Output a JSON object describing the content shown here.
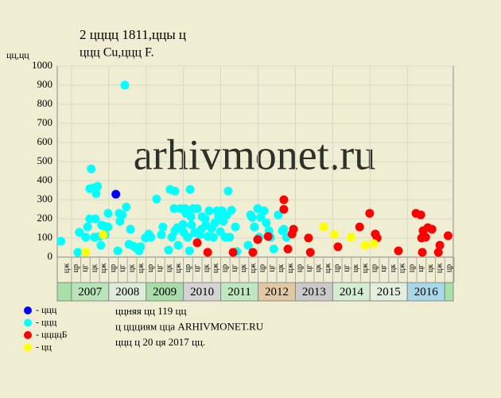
{
  "chart_data": {
    "type": "scatter",
    "title": "2 цццц 1811,ццы ц",
    "subtitle": "ццц Cu,ццц F.",
    "y_label": "цц,цц",
    "watermark": "arhivmonet.ru",
    "notes": [
      "ццняя цц 119 цц",
      "ц ццциям цца ARHIVMONET.RU",
      "ццц ц 20 ця 2017 цц."
    ],
    "xlim": [
      2006.62,
      2017.23
    ],
    "ylim": [
      0,
      1000
    ],
    "yticks": [
      0,
      100,
      200,
      300,
      400,
      500,
      600,
      700,
      800,
      900,
      1000
    ],
    "grid": true,
    "xticks": [
      2007,
      2008,
      2009,
      2010,
      2011,
      2012,
      2013,
      2014,
      2015,
      2016
    ],
    "year_colors": [
      "#b8e4b8",
      "#dcecd8",
      "#a8dca8",
      "#d4d4d4",
      "#c0e8c0",
      "#e2c8a0",
      "#cacaca",
      "#d4ecd0",
      "#e4eedc",
      "#a8d8e8"
    ],
    "edge_color": "#a8e0a8",
    "quarter_start": 2006.75,
    "quarter_labels": [
      "цж",
      "цр",
      "цг",
      "цк",
      "цж",
      "цр",
      "цг",
      "цк",
      "цж",
      "цр",
      "цг",
      "цк",
      "цж",
      "цр",
      "цг",
      "цк",
      "цж",
      "цр",
      "цг",
      "цк",
      "цж",
      "цр",
      "цг",
      "цк",
      "цж",
      "цр",
      "цг",
      "цк",
      "цж",
      "цр",
      "цг",
      "цк",
      "цж",
      "цр",
      "цг",
      "цк",
      "цж",
      "цр",
      "цг",
      "цк",
      "цж",
      "цр"
    ],
    "series": [
      {
        "name": "- ццц",
        "color": "#0000ff",
        "x": [
          2008.19
        ],
        "values": [
          329
        ]
      },
      {
        "name": "- ццц",
        "color": "#00ffff",
        "x": [
          2006.72,
          2007.17,
          2007.21,
          2007.38,
          2007.43,
          2007.49,
          2007.49,
          2007.53,
          2007.58,
          2007.62,
          2007.64,
          2007.66,
          2007.7,
          2007.75,
          2007.79,
          2007.81,
          2007.87,
          2007.9,
          2007.98,
          2007.98,
          2008.24,
          2008.28,
          2008.3,
          2008.36,
          2008.43,
          2008.47,
          2008.54,
          2008.58,
          2008.66,
          2008.75,
          2008.81,
          2008.85,
          2008.98,
          2009.07,
          2009.13,
          2009.28,
          2009.41,
          2009.45,
          2009.6,
          2009.64,
          2009.69,
          2009.75,
          2009.77,
          2009.77,
          2009.84,
          2009.86,
          2009.92,
          2009.99,
          2010.01,
          2010.05,
          2010.07,
          2010.11,
          2010.16,
          2010.18,
          2010.2,
          2010.22,
          2010.26,
          2010.3,
          2010.37,
          2010.43,
          2010.48,
          2010.5,
          2010.58,
          2010.6,
          2010.65,
          2010.69,
          2010.75,
          2010.8,
          2010.84,
          2010.9,
          2010.94,
          2010.99,
          2011.03,
          2011.07,
          2011.12,
          2011.16,
          2011.2,
          2011.24,
          2011.29,
          2011.39,
          2011.43,
          2011.73,
          2011.8,
          2011.84,
          2011.9,
          2011.99,
          2012.03,
          2012.07,
          2012.16,
          2012.22,
          2012.29,
          2012.33,
          2012.42,
          2012.54,
          2012.65,
          2012.69,
          2012.76
        ],
        "values": [
          83,
          25,
          130,
          104,
          158,
          200,
          358,
          462,
          362,
          104,
          200,
          333,
          371,
          108,
          62,
          167,
          163,
          117,
          158,
          229,
          33,
          229,
          188,
          221,
          900,
          262,
          67,
          146,
          58,
          46,
          33,
          54,
          100,
          121,
          104,
          304,
          117,
          158,
          37,
          354,
          104,
          254,
          346,
          138,
          154,
          62,
          254,
          171,
          129,
          254,
          229,
          104,
          33,
          354,
          212,
          167,
          254,
          129,
          254,
          117,
          146,
          212,
          200,
          167,
          108,
          242,
          150,
          104,
          179,
          242,
          212,
          133,
          242,
          188,
          104,
          221,
          346,
          104,
          246,
          158,
          29,
          62,
          221,
          208,
          158,
          254,
          104,
          208,
          242,
          179,
          138,
          104,
          42,
          221,
          138,
          146,
          104
        ]
      },
      {
        "name": "- ццццБ",
        "color": "#ff0000",
        "x": [
          2010.37,
          2010.65,
          2011.33,
          2011.86,
          2011.99,
          2012.27,
          2012.69,
          2012.69,
          2012.8,
          2012.91,
          2012.95,
          2013.35,
          2013.4,
          2014.14,
          2014.72,
          2014.99,
          2015.14,
          2015.19,
          2015.76,
          2016.23,
          2016.36,
          2016.38,
          2016.4,
          2016.42,
          2016.49,
          2016.55,
          2016.66,
          2016.83,
          2016.87,
          2017.09
        ],
        "values": [
          75,
          25,
          25,
          25,
          92,
          108,
          300,
          250,
          42,
          121,
          146,
          100,
          25,
          54,
          158,
          229,
          121,
          100,
          33,
          229,
          221,
          100,
          25,
          138,
          104,
          154,
          146,
          25,
          62,
          112
        ]
      },
      {
        "name": "- цц",
        "color": "#ffff00",
        "x": [
          2007.38,
          2007.85,
          2013.76,
          2014.04,
          2014.49,
          2014.87,
          2015.1
        ],
        "values": [
          25,
          117,
          158,
          117,
          104,
          62,
          71
        ]
      }
    ]
  }
}
